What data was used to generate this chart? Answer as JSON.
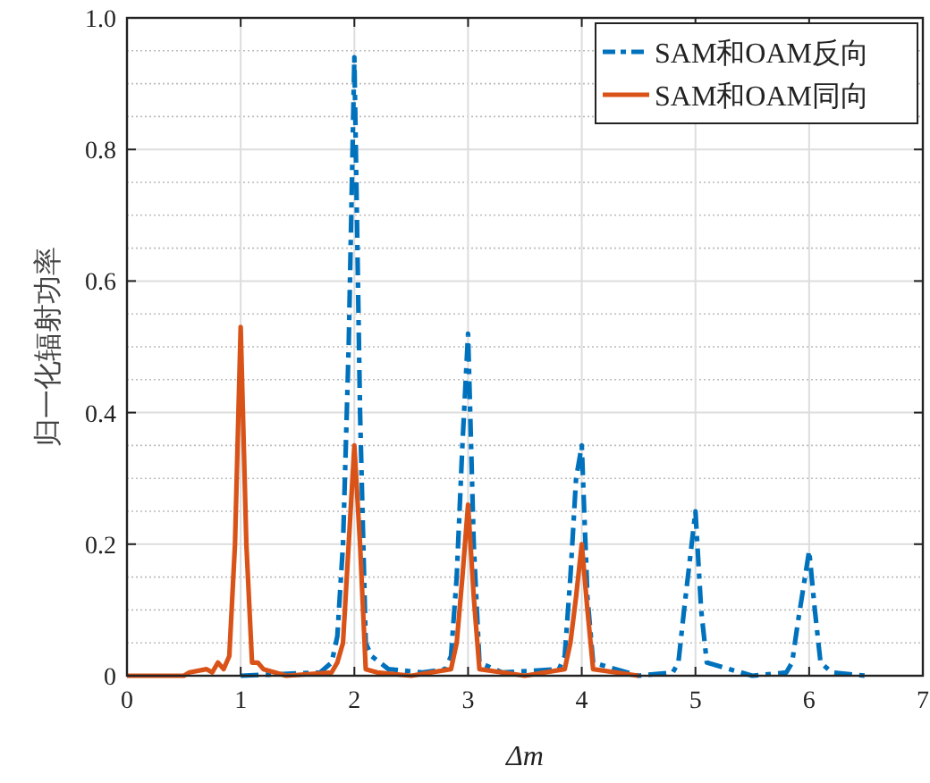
{
  "chart_data": {
    "type": "line",
    "xlabel": "Δm",
    "ylabel": "归一化辐射功率",
    "xlim": [
      0,
      7
    ],
    "xticks": [
      0,
      1,
      2,
      3,
      4,
      5,
      6,
      7
    ],
    "ylim": [
      0,
      1
    ],
    "yticks": [
      0,
      0.2,
      0.4,
      0.6,
      0.8,
      {
        "value": 1,
        "label": "1.0"
      }
    ],
    "grid": true,
    "legend": "top right",
    "series": [
      {
        "name": "SAM和OAM反向",
        "color": "#0072bd",
        "line_style": "dashdot",
        "x": [
          1.0,
          1.7,
          1.8,
          1.85,
          1.9,
          1.95,
          2.0,
          2.05,
          2.1,
          2.15,
          2.3,
          2.6,
          2.8,
          2.85,
          2.9,
          2.95,
          3.0,
          3.05,
          3.1,
          3.3,
          3.8,
          3.85,
          3.9,
          3.95,
          4.0,
          4.05,
          4.1,
          4.5,
          4.8,
          4.85,
          4.9,
          5.0,
          5.05,
          5.1,
          5.5,
          5.8,
          5.85,
          5.9,
          6.0,
          6.05,
          6.1,
          6.2,
          6.5
        ],
        "values": [
          0,
          0.005,
          0.02,
          0.06,
          0.2,
          0.5,
          0.94,
          0.4,
          0.05,
          0.03,
          0.01,
          0.005,
          0.01,
          0.03,
          0.15,
          0.35,
          0.52,
          0.2,
          0.02,
          0.005,
          0.01,
          0.03,
          0.15,
          0.3,
          0.35,
          0.12,
          0.02,
          0,
          0.005,
          0.02,
          0.1,
          0.25,
          0.1,
          0.02,
          0,
          0.005,
          0.02,
          0.08,
          0.19,
          0.1,
          0.02,
          0.005,
          0
        ]
      },
      {
        "name": "SAM和OAM同向",
        "color": "#d95319",
        "line_style": "solid",
        "x": [
          0,
          0.5,
          0.55,
          0.7,
          0.75,
          0.8,
          0.85,
          0.9,
          0.95,
          1.0,
          1.05,
          1.1,
          1.15,
          1.2,
          1.3,
          1.4,
          1.8,
          1.85,
          1.9,
          1.95,
          2.0,
          2.05,
          2.1,
          2.2,
          2.5,
          2.85,
          2.9,
          2.95,
          3.0,
          3.05,
          3.1,
          3.5,
          3.85,
          3.9,
          3.95,
          4.0,
          4.05,
          4.1,
          4.5
        ],
        "values": [
          0,
          0,
          0.005,
          0.01,
          0.005,
          0.02,
          0.01,
          0.03,
          0.2,
          0.53,
          0.2,
          0.02,
          0.02,
          0.01,
          0.005,
          0,
          0.005,
          0.02,
          0.05,
          0.2,
          0.35,
          0.2,
          0.01,
          0.005,
          0,
          0.01,
          0.05,
          0.15,
          0.26,
          0.12,
          0.01,
          0,
          0.01,
          0.05,
          0.12,
          0.2,
          0.1,
          0.01,
          0
        ]
      }
    ]
  }
}
